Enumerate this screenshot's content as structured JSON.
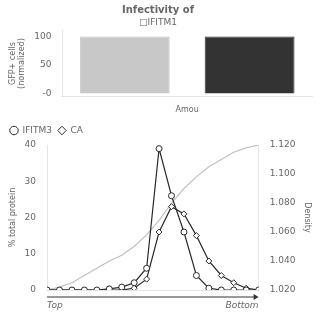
{
  "chart_data": [
    {
      "type": "bar",
      "title": "Infectivity of",
      "subtitle": "□IFITM1",
      "categories": [
        null,
        null
      ],
      "values": [
        100,
        100
      ],
      "colors": [
        "#c8c8c8",
        "#333333"
      ],
      "ylim": [
        -5,
        110
      ],
      "yticks": [
        {
          "value": 0,
          "label": "-0"
        },
        50,
        100
      ],
      "y_label": "GFP+ cells\n(normalized)",
      "x_label": "Amou",
      "tick_labels": "y",
      "grid": false
    },
    {
      "type": "line",
      "x": [
        1,
        2,
        3,
        4,
        5,
        6,
        7,
        8,
        9,
        10,
        11,
        12,
        13,
        14,
        15,
        16,
        17,
        18
      ],
      "xlim": [
        1,
        18
      ],
      "series": [
        {
          "name": "IFITM3",
          "color": "#2a2a2a",
          "marker": "circle",
          "values": [
            0,
            0,
            0,
            0,
            0,
            0.3,
            0.8,
            2,
            6,
            39,
            26,
            16,
            4,
            0.5,
            0,
            0,
            0,
            0
          ]
        },
        {
          "name": "CA",
          "color": "#2a2a2a",
          "marker": "diamond",
          "values": [
            0,
            0,
            0,
            0,
            0,
            0,
            0,
            0.5,
            3,
            16,
            23,
            21,
            15,
            8,
            4,
            2,
            0.5,
            0
          ]
        },
        {
          "axis": "y2",
          "color": "#c0c0c0",
          "values": [
            1.02,
            1.022,
            1.025,
            1.03,
            1.035,
            1.04,
            1.044,
            1.05,
            1.058,
            1.068,
            1.08,
            1.09,
            1.098,
            1.105,
            1.11,
            1.115,
            1.118,
            1.12
          ]
        }
      ],
      "ylim": [
        0,
        40
      ],
      "yticks": [
        0,
        10,
        20,
        30,
        40
      ],
      "y2lim": [
        1.02,
        1.12
      ],
      "y2ticks": [
        {
          "value": 1.02,
          "label": "1.020"
        },
        {
          "value": 1.04,
          "label": "1.040"
        },
        {
          "value": 1.06,
          "label": "1.060"
        },
        {
          "value": 1.08,
          "label": "1.080"
        },
        {
          "value": 1.1,
          "label": "1.100"
        },
        {
          "value": 1.12,
          "label": "1.120"
        }
      ],
      "y_label": "% total protein",
      "y2_label": "Density",
      "annotations": [
        "Top",
        "Bottom"
      ],
      "legend": "upper left",
      "tick_labels": "y",
      "grid": false
    }
  ]
}
